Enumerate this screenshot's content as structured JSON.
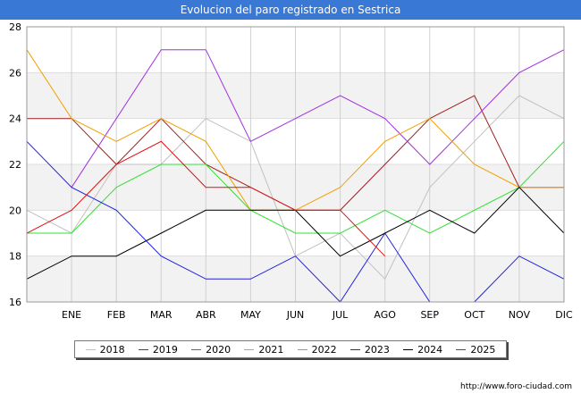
{
  "title": "Evolucion del paro registrado en Sestrica",
  "footer": "http://www.foro-ciudad.com",
  "chart_data": {
    "type": "line",
    "x_ticks": [
      "ENE",
      "FEB",
      "MAR",
      "ABR",
      "MAY",
      "JUN",
      "JUL",
      "AGO",
      "SEP",
      "OCT",
      "NOV",
      "DIC"
    ],
    "ylim": [
      16,
      28
    ],
    "y_ticks": [
      16,
      18,
      20,
      22,
      24,
      26,
      28
    ],
    "grid": true,
    "legend_position": "bottom",
    "series": [
      {
        "name": "2018",
        "color": "#c0c0c0",
        "values": [
          20,
          19,
          22,
          22,
          24,
          23,
          18,
          19,
          17,
          21,
          23,
          25,
          24
        ]
      },
      {
        "name": "2019",
        "color": "#a02020",
        "values": [
          24,
          24,
          22,
          24,
          22,
          21,
          20,
          20,
          22,
          24,
          25,
          21,
          21
        ]
      },
      {
        "name": "2020",
        "color": "#a030e0",
        "values": [
          null,
          21,
          24,
          27,
          27,
          23,
          24,
          25,
          24,
          22,
          24,
          26,
          27
        ]
      },
      {
        "name": "2021",
        "color": "#f0a000",
        "values": [
          27,
          24,
          23,
          24,
          23,
          20,
          20,
          21,
          23,
          24,
          22,
          21,
          21
        ]
      },
      {
        "name": "2022",
        "color": "#30e030",
        "values": [
          19,
          19,
          21,
          22,
          22,
          20,
          19,
          19,
          20,
          19,
          20,
          21,
          23
        ]
      },
      {
        "name": "2023",
        "color": "#2020e0",
        "values": [
          23,
          21,
          20,
          18,
          17,
          17,
          18,
          16,
          19,
          16,
          16,
          18,
          17
        ]
      },
      {
        "name": "2024",
        "color": "#000000",
        "values": [
          17,
          18,
          18,
          19,
          20,
          20,
          20,
          18,
          19,
          20,
          19,
          21,
          19
        ]
      },
      {
        "name": "2025",
        "color": "#e01010",
        "values": [
          19,
          20,
          22,
          23,
          21,
          21,
          20,
          20,
          18,
          null,
          null,
          null,
          null
        ]
      }
    ]
  }
}
